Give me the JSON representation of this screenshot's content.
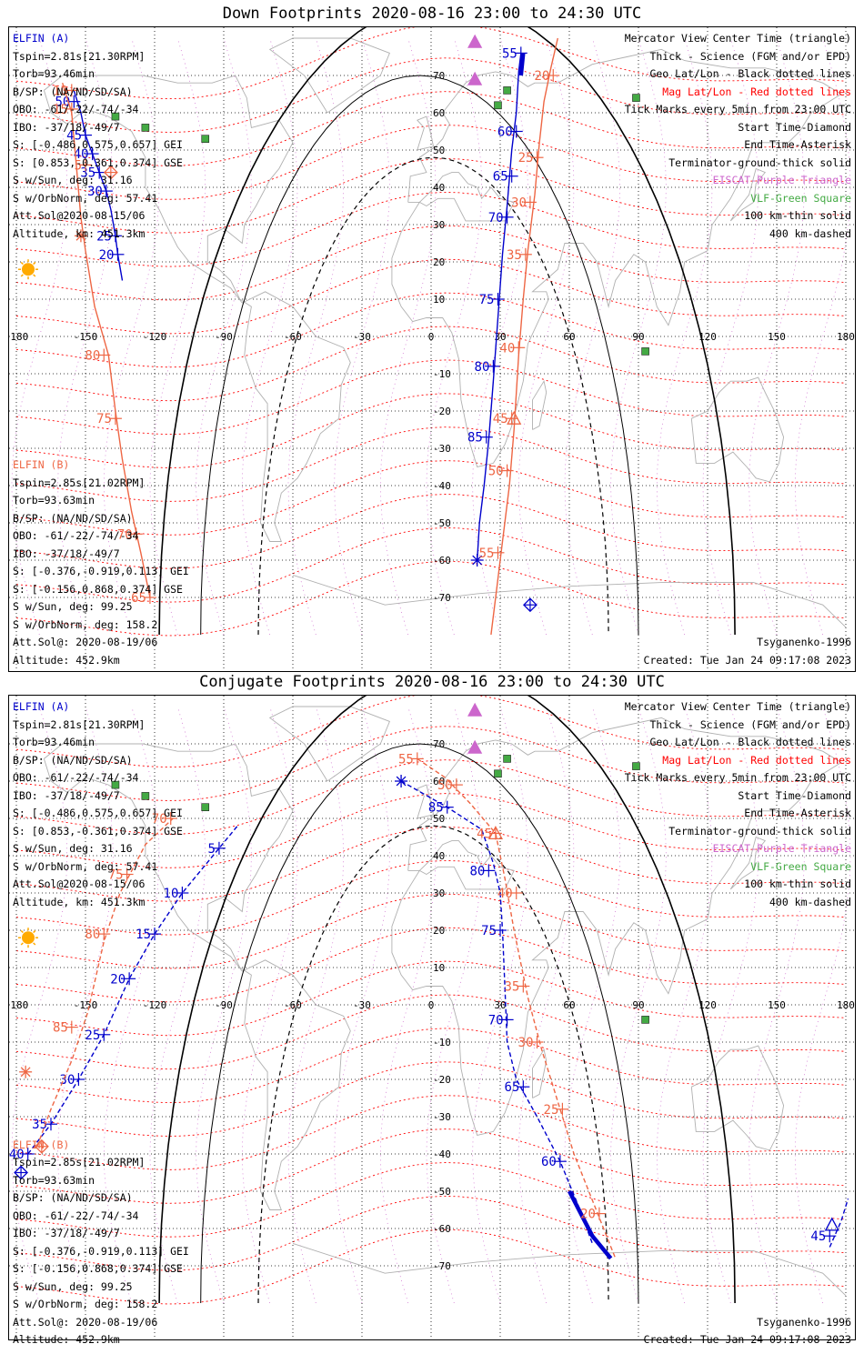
{
  "colors": {
    "a": "#0000cc",
    "b": "#ee6644",
    "geo": "#000000",
    "mag": "#ff0000",
    "eiscat": "#cc66cc",
    "vlf": "#44aa44",
    "coast": "#b0b0b0"
  },
  "panels": [
    {
      "title": "Down Footprints 2020-08-16 23:00 to 24:30 UTC",
      "elfin_a": [
        "ELFIN (A)",
        "Tspin=2.81s[21.30RPM]",
        "Torb=93.46min",
        "B/SP: (NA/ND/SD/SA)",
        "OBO: -61/-22/-74/-34",
        "IBO: -37/18/-49/7",
        "S: [-0.486,0.575,0.657] GEI",
        "S: [0.853,-0.361,0.374] GSE",
        "S w/Sun, deg: 31.16",
        "S w/OrbNorm, deg: 57.41",
        "Att.Sol@2020-08-15/06",
        "Altitude, km: 451.3km"
      ],
      "elfin_b": [
        "ELFIN (B)",
        "Tspin=2.85s[21.02RPM]",
        "Torb=93.63min",
        "B/SP: (NA/ND/SD/SA)",
        "OBO: -61/-22/-74/-34",
        "IBO: -37/18/-49/7",
        "S: [-0.376,-0.919,0.113] GEI",
        "S: [-0.156,0.868,0.374] GSE",
        "S w/Sun, deg: 99.25",
        "S w/OrbNorm, deg: 158.2",
        "Att.Sol@: 2020-08-19/06",
        "Altitude: 452.9km"
      ],
      "legend": [
        "Mercator View Center Time (triangle)",
        "Thick - Science (FGM and/or EPD)",
        "Geo Lat/Lon - Black dotted lines",
        "Mag Lat/Lon - Red dotted lines",
        "Tick Marks every 5min from 23:00 UTC",
        "Start Time-Diamond",
        "End Time-Asterisk",
        "Terminator-ground-thick solid",
        "EISCAT-Purple Triangle",
        "VLF-Green Square",
        "100 km-thin solid",
        "400 km-dashed"
      ],
      "model": "Tsyganenko-1996",
      "created": "Created: Tue Jan 24 09:17:08 2023"
    },
    {
      "title": "Conjugate Footprints 2020-08-16 23:00 to 24:30 UTC",
      "elfin_a": [
        "ELFIN (A)",
        "Tspin=2.81s[21.30RPM]",
        "Torb=93.46min",
        "B/SP: (NA/ND/SD/SA)",
        "OBO: -61/-22/-74/-34",
        "IBO: -37/18/-49/7",
        "S: [-0.486,0.575,0.657] GEI",
        "S: [0.853,-0.361,0.374] GSE",
        "S w/Sun, deg: 31.16",
        "S w/OrbNorm, deg: 57.41",
        "Att.Sol@2020-08-15/06",
        "Altitude, km: 451.3km"
      ],
      "elfin_b": [
        "ELFIN (B)",
        "Tspin=2.85s[21.02RPM]",
        "Torb=93.63min",
        "B/SP: (NA/ND/SD/SA)",
        "OBO: -61/-22/-74/-34",
        "IBO: -37/18/-49/7",
        "S: [-0.376,-0.919,0.113] GEI",
        "S: [-0.156,0.868,0.374] GSE",
        "S w/Sun, deg: 99.25",
        "S w/OrbNorm, deg: 158.2",
        "Att.Sol@: 2020-08-19/06",
        "Altitude: 452.9km"
      ],
      "legend": [
        "Mercator View Center Time (triangle)",
        "Thick - Science (FGM and/or EPD)",
        "Geo Lat/Lon - Black dotted lines",
        "Mag Lat/Lon - Red dotted lines",
        "Tick Marks every 5min from 23:00 UTC",
        "Start Time-Diamond",
        "End Time-Asterisk",
        "Terminator-ground-thick solid",
        "EISCAT-Purple Triangle",
        "VLF-Green Square",
        "100 km-thin solid",
        "400 km-dashed"
      ],
      "model": "Tsyganenko-1996",
      "created": "Created: Tue Jan 24 09:17:08 2023"
    }
  ],
  "chart_data": [
    {
      "type": "line",
      "title": "Down Footprints 2020-08-16 23:00 to 24:30 UTC",
      "xlim": [
        -180,
        180
      ],
      "ylim": [
        -80,
        80
      ],
      "x_ticks": [
        "-180",
        "-150",
        "-120",
        "-90",
        "-60",
        "-30",
        "0",
        "30",
        "60",
        "90",
        "120",
        "150",
        "180"
      ],
      "y_ticks": [
        "70",
        "60",
        "50",
        "40",
        "30",
        "20",
        "10",
        "-10",
        "-20",
        "-30",
        "-40",
        "-50",
        "-60",
        "-70"
      ],
      "grid": true,
      "series": [
        {
          "name": "ELFIN (A)",
          "track": [
            [
              -134,
              15
            ],
            [
              -136,
              22
            ],
            [
              -137,
              27
            ],
            [
              -139,
              34
            ],
            [
              -141,
              39
            ],
            [
              -144,
              44
            ],
            [
              -147,
              49
            ],
            [
              -150,
              54
            ],
            [
              -152,
              60
            ],
            [
              -155,
              66
            ]
          ],
          "ticks": [
            [
              "20",
              -136,
              22
            ],
            [
              "25",
              -137,
              27
            ],
            [
              "30",
              -141,
              39
            ],
            [
              "35",
              -144,
              44
            ],
            [
              "40",
              -147,
              49
            ],
            [
              "45",
              -150,
              54
            ],
            [
              "50",
              -155,
              63
            ]
          ],
          "science": [
            [
              40,
              76
            ],
            [
              39,
              70
            ]
          ],
          "track2": [
            [
              39,
              76
            ],
            [
              38,
              71
            ],
            [
              37,
              60
            ],
            [
              35,
              50
            ],
            [
              33,
              35
            ],
            [
              31,
              22
            ],
            [
              29,
              5
            ],
            [
              27,
              -12
            ],
            [
              25,
              -28
            ],
            [
              23,
              -40
            ],
            [
              21,
              -50
            ],
            [
              20,
              -60
            ]
          ],
          "ticks2": [
            [
              "55",
              39,
              76
            ],
            [
              "60",
              37,
              55
            ],
            [
              "65",
              35,
              43
            ],
            [
              "70",
              33,
              32
            ],
            [
              "75",
              29,
              10
            ],
            [
              "80",
              27,
              -8
            ],
            [
              "85",
              24,
              -27
            ]
          ],
          "start": [
            [
              43,
              -72
            ]
          ],
          "end": [
            [
              20,
              -60
            ]
          ]
        },
        {
          "name": "ELFIN (B)",
          "track": [
            [
              -122,
              -70
            ],
            [
              -126,
              -58
            ],
            [
              -130,
              -47
            ],
            [
              -134,
              -33
            ],
            [
              -137,
              -20
            ],
            [
              -140,
              -5
            ],
            [
              -146,
              8
            ],
            [
              -150,
              23
            ],
            [
              -152,
              32
            ],
            [
              -154,
              46
            ],
            [
              -156,
              60
            ],
            [
              -160,
              68
            ]
          ],
          "ticks": [
            [
              "65",
              -122,
              -70
            ],
            [
              "70",
              -128,
              -53
            ],
            [
              "75",
              -137,
              -22
            ],
            [
              "80",
              -142,
              -5
            ],
            [
              "5",
              -150,
              46
            ],
            [
              "10",
              -156,
              66
            ]
          ],
          "track2": [
            [
              26,
              -80
            ],
            [
              29,
              -65
            ],
            [
              31,
              -55
            ],
            [
              34,
              -40
            ],
            [
              36,
              -25
            ],
            [
              38,
              -5
            ],
            [
              40,
              10
            ],
            [
              42,
              23
            ],
            [
              45,
              38
            ],
            [
              47,
              52
            ],
            [
              49,
              63
            ],
            [
              52,
              72
            ],
            [
              55,
              80
            ]
          ],
          "ticks2": [
            [
              "15",
              -156,
              61
            ],
            [
              "20",
              53,
              70
            ],
            [
              "25",
              46,
              48
            ],
            [
              "30",
              43,
              36
            ],
            [
              "35",
              41,
              22
            ],
            [
              "40",
              38,
              -3
            ],
            [
              "45",
              35,
              -22
            ],
            [
              "50",
              33,
              -36
            ],
            [
              "55",
              29,
              -58
            ]
          ],
          "start": [
            [
              -139,
              44
            ]
          ],
          "end": [
            [
              -152,
              27
            ]
          ],
          "center": [
            [
              36,
              -22
            ]
          ]
        }
      ],
      "eiscat": [
        [
          19,
          79
        ],
        [
          19,
          69
        ]
      ],
      "vlf": [
        [
          -137,
          59
        ],
        [
          -124,
          56
        ],
        [
          -98,
          53
        ],
        [
          29,
          62
        ],
        [
          33,
          66
        ],
        [
          89,
          64
        ],
        [
          93,
          -4
        ]
      ],
      "sun": [
        [
          -180,
          18
        ]
      ]
    },
    {
      "type": "line",
      "title": "Conjugate Footprints 2020-08-16 23:00 to 24:30 UTC",
      "xlim": [
        -180,
        180
      ],
      "ylim": [
        -80,
        80
      ],
      "x_ticks": [
        "-180",
        "-150",
        "-120",
        "-90",
        "-60",
        "-30",
        "0",
        "30",
        "60",
        "90",
        "120",
        "150",
        "180"
      ],
      "y_ticks": [
        "70",
        "60",
        "50",
        "40",
        "30",
        "20",
        "10",
        "-10",
        "-20",
        "-30",
        "-40",
        "-50",
        "-60",
        "-70"
      ],
      "grid": true,
      "series": [
        {
          "name": "ELFIN (A)",
          "track": [
            [
              -175,
              -40
            ],
            [
              -165,
              -32
            ],
            [
              -153,
              -20
            ],
            [
              -142,
              -8
            ],
            [
              -131,
              7
            ],
            [
              -120,
              19
            ],
            [
              -108,
              30
            ],
            [
              -92,
              42
            ],
            [
              -84,
              48
            ]
          ],
          "ticks": [
            [
              "40",
              -175,
              -40
            ],
            [
              "35",
              -165,
              -32
            ],
            [
              "30",
              -153,
              -20
            ],
            [
              "25",
              -142,
              -8
            ],
            [
              "20",
              -131,
              7
            ],
            [
              "15",
              -120,
              19
            ],
            [
              "10",
              -108,
              30
            ],
            [
              "5",
              -92,
              42
            ]
          ],
          "track2": [
            [
              -13,
              60
            ],
            [
              7,
              53
            ],
            [
              22,
              47
            ],
            [
              27,
              38
            ],
            [
              30,
              30
            ],
            [
              31,
              20
            ],
            [
              32,
              5
            ],
            [
              33,
              -10
            ],
            [
              37,
              -20
            ],
            [
              46,
              -30
            ],
            [
              56,
              -42
            ],
            [
              64,
              -54
            ],
            [
              70,
              -64
            ]
          ],
          "ticks2": [
            [
              "85",
              7,
              53
            ],
            [
              "80",
              25,
              36
            ],
            [
              "75",
              30,
              20
            ],
            [
              "70",
              33,
              -4
            ],
            [
              "65",
              40,
              -22
            ],
            [
              "60",
              56,
              -42
            ]
          ],
          "science": [
            [
              60,
              -50
            ],
            [
              70,
              -62
            ],
            [
              78,
              -68
            ]
          ],
          "track3": [
            [
              173,
              -65
            ],
            [
              178,
              -58
            ],
            [
              181,
              -52
            ]
          ],
          "ticks3": [
            [
              "45",
              173,
              -62
            ]
          ],
          "start": [
            [
              -178,
              -45
            ]
          ],
          "end": [
            [
              -13,
              60
            ]
          ],
          "center": [
            [
              174,
              -59
            ]
          ]
        },
        {
          "name": "ELFIN (B)",
          "track": [
            [
              -171,
              -38
            ],
            [
              -165,
              -28
            ],
            [
              -156,
              -15
            ],
            [
              -149,
              -2
            ],
            [
              -142,
              17
            ],
            [
              -135,
              30
            ],
            [
              -124,
              43
            ],
            [
              -112,
              50
            ]
          ],
          "ticks": [
            [
              "85",
              -156,
              -6
            ],
            [
              "80",
              -142,
              19
            ],
            [
              "75",
              -132,
              35
            ],
            [
              "70",
              -113,
              50
            ]
          ],
          "track2": [
            [
              -6,
              66
            ],
            [
              6,
              61
            ],
            [
              17,
              54
            ],
            [
              28,
              46
            ],
            [
              32,
              34
            ],
            [
              36,
              20
            ],
            [
              42,
              2
            ],
            [
              48,
              -12
            ],
            [
              56,
              -28
            ],
            [
              62,
              -40
            ],
            [
              71,
              -54
            ],
            [
              80,
              -68
            ]
          ],
          "ticks2": [
            [
              "55",
              -6,
              66
            ],
            [
              "50",
              11,
              59
            ],
            [
              "45",
              28,
              46
            ],
            [
              "40",
              37,
              30
            ],
            [
              "35",
              40,
              5
            ],
            [
              "30",
              46,
              -10
            ],
            [
              "25",
              57,
              -28
            ],
            [
              "20",
              73,
              -56
            ]
          ],
          "start": [
            [
              -169,
              -38
            ]
          ],
          "end": [
            [
              -176,
              -18
            ]
          ],
          "center": [
            [
              28,
              46
            ]
          ]
        }
      ],
      "eiscat": [
        [
          19,
          79
        ],
        [
          19,
          69
        ]
      ],
      "vlf": [
        [
          -137,
          59
        ],
        [
          -124,
          56
        ],
        [
          -98,
          53
        ],
        [
          29,
          62
        ],
        [
          33,
          66
        ],
        [
          89,
          64
        ],
        [
          93,
          -4
        ]
      ],
      "sun": [
        [
          -180,
          18
        ]
      ]
    }
  ]
}
